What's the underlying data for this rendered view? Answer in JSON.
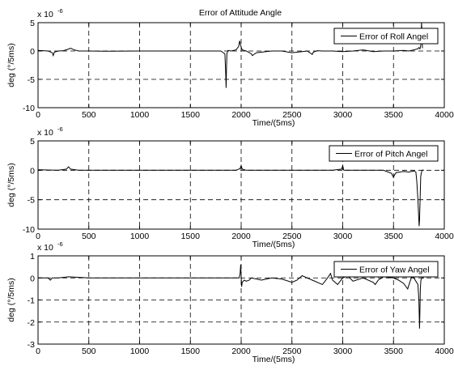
{
  "chart_data": [
    {
      "type": "line",
      "title": "Error of Attitude Angle",
      "xlabel": "Time/(5ms)",
      "ylabel": "deg (°/5ms)",
      "exponent_base": "x 10",
      "exponent_power": "-6",
      "xlim": [
        0,
        4000
      ],
      "ylim": [
        -10,
        5
      ],
      "xticks": [
        "0",
        "500",
        "1000",
        "1500",
        "2000",
        "2500",
        "3000",
        "3500",
        "4000"
      ],
      "yticks": [
        "5",
        "0",
        "-5",
        "-10"
      ],
      "yticks_values": [
        5,
        0,
        -5,
        -10
      ],
      "grid": true,
      "legend_position": "top-right",
      "series": [
        {
          "name": "Error of Roll Angel",
          "x": [
            0,
            100,
            140,
            150,
            160,
            200,
            250,
            300,
            320,
            350,
            400,
            500,
            700,
            1000,
            1300,
            1700,
            1800,
            1840,
            1848,
            1852,
            1856,
            1860,
            1870,
            1900,
            1950,
            1975,
            1985,
            1992,
            2000,
            2010,
            2050,
            2100,
            2110,
            2150,
            2300,
            2400,
            2500,
            2600,
            2650,
            2700,
            2710,
            2750,
            2800,
            2900,
            3000,
            3100,
            3200,
            3300,
            3400,
            3500,
            3600,
            3650,
            3700,
            3740,
            3750,
            3760,
            3768,
            3772,
            3776,
            3780,
            3785
          ],
          "values": [
            0.1,
            0.0,
            -0.3,
            -0.8,
            -0.2,
            0.0,
            0.05,
            0.35,
            0.5,
            0.25,
            0.0,
            0.0,
            -0.05,
            0.0,
            0.0,
            0.0,
            0.0,
            -0.5,
            -4.0,
            -6.5,
            -3.0,
            -0.4,
            0.1,
            0.0,
            0.2,
            0.8,
            1.8,
            1.2,
            0.7,
            0.2,
            0.0,
            -0.5,
            -0.8,
            -0.3,
            0.0,
            0.0,
            -0.3,
            -0.1,
            0.0,
            -0.6,
            -0.2,
            0.05,
            0.0,
            0.0,
            -0.1,
            0.0,
            0.2,
            -0.1,
            0.0,
            0.0,
            0.1,
            0.0,
            0.2,
            0.4,
            0.6,
            0.4,
            1.0,
            3.0,
            5.0,
            3.5,
            0.5
          ]
        }
      ]
    },
    {
      "type": "line",
      "xlabel": "Time/(5ms)",
      "ylabel": "deg (°/5ms)",
      "exponent_base": "x 10",
      "exponent_power": "-6",
      "xlim": [
        0,
        4000
      ],
      "ylim": [
        -10,
        5
      ],
      "xticks": [
        "0",
        "500",
        "1000",
        "1500",
        "2000",
        "2500",
        "3000",
        "3500",
        "4000"
      ],
      "yticks": [
        "5",
        "0",
        "-5",
        "-10"
      ],
      "yticks_values": [
        5,
        0,
        -5,
        -10
      ],
      "grid": true,
      "legend_position": "top-right",
      "series": [
        {
          "name": "Error of Pitch Angel",
          "x": [
            0,
            100,
            200,
            280,
            300,
            320,
            400,
            500,
            700,
            1000,
            1400,
            1800,
            1950,
            1990,
            2000,
            2010,
            2050,
            2100,
            2500,
            2900,
            2990,
            3000,
            3010,
            3200,
            3400,
            3480,
            3500,
            3510,
            3525,
            3560,
            3600,
            3650,
            3700,
            3720,
            3730,
            3740,
            3748,
            3752,
            3756,
            3760,
            3768,
            3780,
            3800
          ],
          "values": [
            0.1,
            0.05,
            0.0,
            0.2,
            0.6,
            0.2,
            0.0,
            0.0,
            0.0,
            0.0,
            0.0,
            0.0,
            0.0,
            0.3,
            0.8,
            0.2,
            0.0,
            0.0,
            0.0,
            0.0,
            0.2,
            0.8,
            0.0,
            0.0,
            0.0,
            -0.5,
            -1.2,
            -0.8,
            -0.4,
            -0.3,
            -0.2,
            -0.3,
            -0.1,
            -0.3,
            -2.0,
            -5.0,
            -8.0,
            -9.5,
            -8.5,
            -6.0,
            -1.0,
            0.0,
            0.0
          ]
        }
      ]
    },
    {
      "type": "line",
      "xlabel": "Time/(5ms)",
      "ylabel": "deg (°/5ms)",
      "exponent_base": "x 10",
      "exponent_power": "-6",
      "xlim": [
        0,
        4000
      ],
      "ylim": [
        -3,
        1
      ],
      "xticks": [
        "0",
        "500",
        "1000",
        "1500",
        "2000",
        "2500",
        "3000",
        "3500",
        "4000"
      ],
      "yticks": [
        "1",
        "0",
        "-1",
        "-2",
        "-3"
      ],
      "yticks_values": [
        1,
        0,
        -1,
        -2,
        -3
      ],
      "grid": true,
      "legend_position": "top-right",
      "series": [
        {
          "name": "Error of Yaw Angel",
          "x": [
            0,
            100,
            120,
            140,
            200,
            300,
            500,
            1000,
            1500,
            1980,
            1990,
            1995,
            2000,
            2005,
            2010,
            2030,
            2050,
            2080,
            2100,
            2200,
            2300,
            2400,
            2500,
            2550,
            2600,
            2700,
            2800,
            2850,
            2880,
            2900,
            2950,
            3000,
            3050,
            3100,
            3200,
            3300,
            3320,
            3350,
            3400,
            3500,
            3550,
            3600,
            3640,
            3660,
            3680,
            3700,
            3740,
            3750,
            3756,
            3760,
            3764,
            3770,
            3780,
            3800
          ],
          "values": [
            0.0,
            0.0,
            -0.1,
            0.0,
            0.0,
            0.05,
            0.0,
            0.0,
            0.0,
            0.0,
            0.2,
            0.6,
            0.1,
            -0.4,
            -0.2,
            -0.1,
            -0.15,
            -0.1,
            0.0,
            -0.1,
            0.0,
            -0.05,
            -0.2,
            -0.1,
            0.1,
            -0.1,
            -0.3,
            0.0,
            0.2,
            -0.1,
            -0.3,
            0.0,
            0.1,
            -0.15,
            0.0,
            -0.2,
            -0.3,
            -0.1,
            0.05,
            0.0,
            -0.1,
            -0.25,
            -0.5,
            -0.2,
            0.05,
            0.0,
            -0.3,
            -1.0,
            -2.3,
            -1.5,
            -0.5,
            -0.1,
            0.0,
            0.0
          ]
        }
      ]
    }
  ]
}
